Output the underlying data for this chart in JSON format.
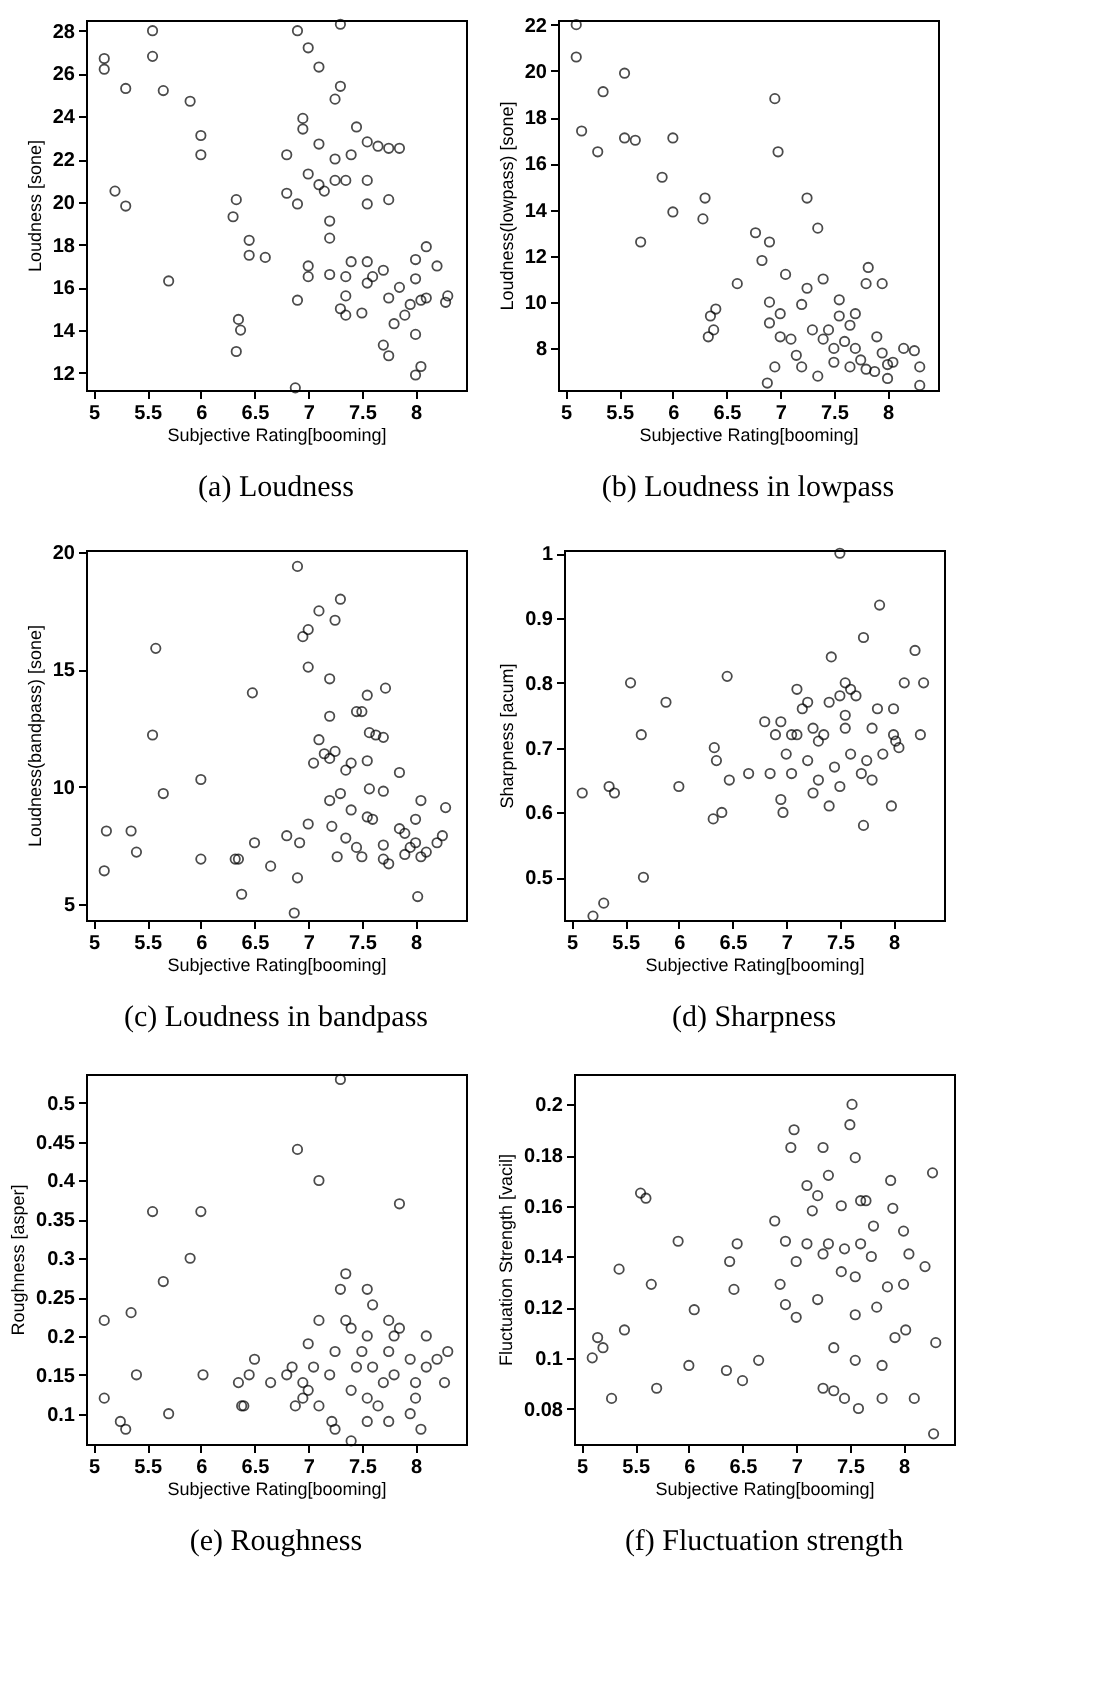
{
  "chart_data": [
    {
      "type": "scatter",
      "title": "(a) Loudness",
      "xlabel": "Subjective Rating[booming]",
      "ylabel": "Loudness [sone]",
      "marker": "circle",
      "color": "#000000",
      "xlim": [
        4.93,
        8.47
      ],
      "xticks": [
        5,
        5.5,
        6,
        6.5,
        7,
        7.5,
        8
      ],
      "ylim": [
        11.2,
        28.5
      ],
      "yticks": [
        12,
        14,
        16,
        18,
        20,
        22,
        24,
        26,
        28
      ],
      "x": [
        5.1,
        5.1,
        5.55,
        5.55,
        5.3,
        5.65,
        5.9,
        6.0,
        6.0,
        5.2,
        5.3,
        5.7,
        6.3,
        6.33,
        6.45,
        6.45,
        6.6,
        6.35,
        6.37,
        6.33,
        6.9,
        7.0,
        7.1,
        7.3,
        7.3,
        7.25,
        6.95,
        6.95,
        7.1,
        6.8,
        7.0,
        7.1,
        7.15,
        6.8,
        6.9,
        7.25,
        7.35,
        7.25,
        7.45,
        7.4,
        7.55,
        7.65,
        7.75,
        7.85,
        7.55,
        7.55,
        7.75,
        7.2,
        7.2,
        7.0,
        7.0,
        6.9,
        7.2,
        7.4,
        7.35,
        7.55,
        7.55,
        7.35,
        7.3,
        7.35,
        7.5,
        7.6,
        7.7,
        7.75,
        7.8,
        7.85,
        7.9,
        7.95,
        8.0,
        8.0,
        8.1,
        8.2,
        8.05,
        8.1,
        8.28,
        8.3,
        7.7,
        7.75,
        8.05,
        8.0,
        8.0,
        6.88
      ],
      "values": [
        26.7,
        26.2,
        28,
        26.8,
        25.3,
        25.2,
        24.7,
        23.1,
        22.2,
        20.5,
        19.8,
        16.3,
        19.3,
        20.1,
        18.2,
        17.5,
        17.4,
        14.5,
        14,
        13,
        28,
        27.2,
        26.3,
        28.3,
        25.4,
        24.8,
        23.9,
        23.4,
        22.7,
        22.2,
        21.3,
        20.8,
        20.5,
        20.4,
        19.9,
        22,
        21,
        21,
        23.5,
        22.2,
        22.8,
        22.6,
        22.5,
        22.5,
        21,
        19.9,
        20.1,
        19.1,
        18.3,
        17,
        16.5,
        15.4,
        16.6,
        17.2,
        16.5,
        17.2,
        16.2,
        15.6,
        15,
        14.7,
        14.8,
        16.5,
        16.8,
        15.5,
        14.3,
        16,
        14.7,
        15.2,
        16.4,
        17.3,
        17.9,
        17,
        15.4,
        15.5,
        15.3,
        15.6,
        13.3,
        12.8,
        12.3,
        11.9,
        13.8,
        11.3
      ]
    },
    {
      "type": "scatter",
      "title": "(b) Loudness in lowpass",
      "xlabel": "Subjective Rating[booming]",
      "ylabel": "Loudness(lowpass) [sone]",
      "marker": "circle",
      "color": "#000000",
      "xlim": [
        4.93,
        8.47
      ],
      "xticks": [
        5,
        5.5,
        6,
        6.5,
        7,
        7.5,
        8
      ],
      "ylim": [
        6.2,
        22.2
      ],
      "yticks": [
        8,
        10,
        12,
        14,
        16,
        18,
        20,
        22
      ],
      "x": [
        5.1,
        5.1,
        5.15,
        5.3,
        5.35,
        5.55,
        5.55,
        5.65,
        5.9,
        6.0,
        6.0,
        5.7,
        6.3,
        6.28,
        6.35,
        6.4,
        6.33,
        6.38,
        6.6,
        6.77,
        6.83,
        6.9,
        6.95,
        6.98,
        7.05,
        6.9,
        7.0,
        6.9,
        7.0,
        7.1,
        7.25,
        7.35,
        7.25,
        7.4,
        7.2,
        7.3,
        7.15,
        7.2,
        6.95,
        6.88,
        7.35,
        7.45,
        7.55,
        7.55,
        7.65,
        7.6,
        7.7,
        7.7,
        7.8,
        7.82,
        7.95,
        7.75,
        7.8,
        7.88,
        7.9,
        7.95,
        8.0,
        8.0,
        8.05,
        8.15,
        8.25,
        8.3,
        7.5,
        7.4,
        7.5,
        7.65,
        8.3
      ],
      "values": [
        22,
        20.6,
        17.4,
        16.5,
        19.1,
        19.9,
        17.1,
        17,
        15.4,
        17.1,
        13.9,
        12.6,
        14.5,
        13.6,
        9.4,
        9.7,
        8.5,
        8.8,
        10.8,
        13,
        11.8,
        12.6,
        18.8,
        16.5,
        11.2,
        10.0,
        9.5,
        9.1,
        8.5,
        8.4,
        14.5,
        13.2,
        10.6,
        11,
        9.9,
        8.8,
        7.7,
        7.2,
        7.2,
        6.5,
        6.8,
        8.8,
        10.1,
        9.4,
        9.0,
        8.3,
        8.0,
        9.5,
        10.8,
        11.5,
        10.8,
        7.5,
        7.1,
        7.0,
        8.5,
        7.8,
        7.3,
        6.7,
        7.4,
        8.0,
        7.9,
        7.2,
        7.4,
        8.4,
        8.0,
        7.2,
        6.4
      ]
    },
    {
      "type": "scatter",
      "title": "(c) Loudness in bandpass",
      "xlabel": "Subjective Rating[booming]",
      "ylabel": "Loudness(bandpass) [sone]",
      "marker": "circle",
      "color": "#000000",
      "xlim": [
        4.93,
        8.47
      ],
      "xticks": [
        5,
        5.5,
        6,
        6.5,
        7,
        7.5,
        8
      ],
      "ylim": [
        4.3,
        20.1
      ],
      "yticks": [
        5,
        10,
        15,
        20
      ],
      "x": [
        5.1,
        5.12,
        5.35,
        5.4,
        5.58,
        5.55,
        5.65,
        6.0,
        6.0,
        6.32,
        6.35,
        6.38,
        6.5,
        6.48,
        6.65,
        6.8,
        6.9,
        6.95,
        7.0,
        7.1,
        7.0,
        7.25,
        7.3,
        7.2,
        7.2,
        7.1,
        7.05,
        7.15,
        7.2,
        7.25,
        7.2,
        7.3,
        7.22,
        7.0,
        6.92,
        6.9,
        6.87,
        7.27,
        7.35,
        7.4,
        7.45,
        7.5,
        7.55,
        7.57,
        7.63,
        7.7,
        7.72,
        7.55,
        7.57,
        7.7,
        7.4,
        7.55,
        7.35,
        7.45,
        7.5,
        7.6,
        7.7,
        7.7,
        7.75,
        7.85,
        7.85,
        7.9,
        7.95,
        8.0,
        8.05,
        8.0,
        8.05,
        8.1,
        8.2,
        8.25,
        8.28,
        8.02,
        7.9
      ],
      "values": [
        6.4,
        8.1,
        8.1,
        7.2,
        15.9,
        12.2,
        9.7,
        10.3,
        6.9,
        6.9,
        6.9,
        5.4,
        7.6,
        14,
        6.6,
        7.9,
        19.4,
        16.4,
        16.7,
        17.5,
        15.1,
        17.1,
        18,
        14.6,
        13,
        12,
        11,
        11.4,
        11.2,
        11.5,
        9.4,
        9.7,
        8.3,
        8.4,
        7.6,
        6.1,
        4.6,
        7,
        10.7,
        11,
        13.2,
        13.2,
        13.9,
        12.3,
        12.2,
        12.1,
        14.2,
        11.1,
        9.9,
        9.8,
        9.0,
        8.7,
        7.8,
        7.4,
        7.0,
        8.6,
        7.5,
        6.9,
        6.7,
        8.2,
        10.6,
        8.0,
        7.4,
        8.6,
        9.4,
        7.6,
        7.0,
        7.2,
        7.6,
        7.9,
        9.1,
        5.3,
        7.1
      ]
    },
    {
      "type": "scatter",
      "title": "(d) Sharpness",
      "xlabel": "Subjective Rating[booming]",
      "ylabel": "Sharpness [acum]",
      "marker": "circle",
      "color": "#000000",
      "xlim": [
        4.93,
        8.47
      ],
      "xticks": [
        5,
        5.5,
        6,
        6.5,
        7,
        7.5,
        8
      ],
      "ylim": [
        0.434,
        1.005
      ],
      "yticks": [
        0.5,
        0.6,
        0.7,
        0.8,
        0.9,
        1
      ],
      "x": [
        5.1,
        5.2,
        5.3,
        5.35,
        5.4,
        5.55,
        5.65,
        5.67,
        5.88,
        6.0,
        6.33,
        6.35,
        6.32,
        6.4,
        6.45,
        6.47,
        6.65,
        6.8,
        6.85,
        6.9,
        6.95,
        6.95,
        6.97,
        7.0,
        7.05,
        7.05,
        7.1,
        7.1,
        7.15,
        7.2,
        7.2,
        7.25,
        7.25,
        7.3,
        7.3,
        7.35,
        7.4,
        7.4,
        7.42,
        7.45,
        7.5,
        7.5,
        7.55,
        7.55,
        7.55,
        7.5,
        7.6,
        7.65,
        7.72,
        7.72,
        7.75,
        7.8,
        7.8,
        7.85,
        7.87,
        7.9,
        7.98,
        8.0,
        8.0,
        8.02,
        8.05,
        8.1,
        8.2,
        8.25,
        8.28,
        7.7,
        7.6
      ],
      "values": [
        0.63,
        0.44,
        0.46,
        0.64,
        0.63,
        0.8,
        0.72,
        0.5,
        0.77,
        0.64,
        0.7,
        0.68,
        0.59,
        0.6,
        0.81,
        0.65,
        0.66,
        0.74,
        0.66,
        0.72,
        0.74,
        0.62,
        0.6,
        0.69,
        0.72,
        0.66,
        0.79,
        0.72,
        0.76,
        0.77,
        0.68,
        0.73,
        0.63,
        0.71,
        0.65,
        0.72,
        0.77,
        0.61,
        0.84,
        0.67,
        0.78,
        0.64,
        0.75,
        0.8,
        0.73,
        1.0,
        0.79,
        0.78,
        0.87,
        0.58,
        0.68,
        0.65,
        0.73,
        0.76,
        0.92,
        0.69,
        0.61,
        0.76,
        0.72,
        0.71,
        0.7,
        0.8,
        0.85,
        0.72,
        0.8,
        0.66,
        0.69
      ]
    },
    {
      "type": "scatter",
      "title": "(e) Roughness",
      "xlabel": "Subjective Rating[booming]",
      "ylabel": "Roughness [asper]",
      "marker": "circle",
      "color": "#000000",
      "xlim": [
        4.93,
        8.47
      ],
      "xticks": [
        5,
        5.5,
        6,
        6.5,
        7,
        7.5,
        8
      ],
      "ylim": [
        0.061,
        0.537
      ],
      "yticks": [
        0.1,
        0.15,
        0.2,
        0.25,
        0.3,
        0.35,
        0.4,
        0.45,
        0.5
      ],
      "x": [
        5.1,
        5.1,
        5.25,
        5.3,
        5.35,
        5.4,
        5.55,
        5.65,
        5.7,
        5.9,
        6.0,
        6.02,
        6.35,
        6.38,
        6.45,
        6.5,
        6.4,
        6.65,
        6.8,
        6.85,
        6.88,
        6.9,
        6.95,
        6.95,
        7.0,
        7.0,
        7.05,
        7.1,
        7.1,
        7.1,
        7.2,
        7.22,
        7.25,
        7.25,
        7.3,
        7.3,
        7.35,
        7.35,
        7.4,
        7.4,
        7.4,
        7.45,
        7.5,
        7.55,
        7.55,
        7.55,
        7.55,
        7.6,
        7.6,
        7.65,
        7.7,
        7.75,
        7.75,
        7.8,
        7.8,
        7.85,
        7.85,
        7.95,
        7.95,
        8.0,
        8.0,
        8.05,
        8.1,
        8.1,
        8.2,
        8.27,
        8.3,
        7.75
      ],
      "values": [
        0.22,
        0.12,
        0.09,
        0.08,
        0.23,
        0.15,
        0.36,
        0.27,
        0.1,
        0.3,
        0.36,
        0.15,
        0.14,
        0.11,
        0.15,
        0.17,
        0.11,
        0.14,
        0.15,
        0.16,
        0.11,
        0.44,
        0.14,
        0.12,
        0.19,
        0.13,
        0.16,
        0.4,
        0.22,
        0.11,
        0.15,
        0.09,
        0.18,
        0.08,
        0.26,
        0.53,
        0.28,
        0.22,
        0.21,
        0.13,
        0.065,
        0.16,
        0.18,
        0.26,
        0.2,
        0.12,
        0.09,
        0.24,
        0.16,
        0.11,
        0.14,
        0.22,
        0.18,
        0.2,
        0.15,
        0.37,
        0.21,
        0.1,
        0.17,
        0.12,
        0.14,
        0.08,
        0.2,
        0.16,
        0.17,
        0.14,
        0.18,
        0.09
      ]
    },
    {
      "type": "scatter",
      "title": "(f) Fluctuation strength",
      "xlabel": "Subjective Rating[booming]",
      "ylabel": "Fluctuation Strength [vacil]",
      "marker": "circle",
      "color": "#000000",
      "xlim": [
        4.93,
        8.47
      ],
      "xticks": [
        5,
        5.5,
        6,
        6.5,
        7,
        7.5,
        8
      ],
      "ylim": [
        0.066,
        0.212
      ],
      "yticks": [
        0.08,
        0.1,
        0.12,
        0.14,
        0.16,
        0.18,
        0.2
      ],
      "x": [
        5.1,
        5.15,
        5.2,
        5.28,
        5.35,
        5.4,
        5.55,
        5.6,
        5.65,
        5.7,
        5.9,
        6.0,
        6.05,
        6.35,
        6.38,
        6.42,
        6.45,
        6.5,
        6.65,
        6.8,
        6.85,
        6.9,
        6.9,
        6.95,
        6.98,
        7.0,
        7.0,
        7.1,
        7.1,
        7.15,
        7.2,
        7.2,
        7.25,
        7.25,
        7.25,
        7.3,
        7.3,
        7.35,
        7.35,
        7.42,
        7.42,
        7.45,
        7.45,
        7.5,
        7.52,
        7.55,
        7.55,
        7.55,
        7.55,
        7.58,
        7.6,
        7.6,
        7.65,
        7.7,
        7.72,
        7.75,
        7.8,
        7.8,
        7.85,
        7.88,
        7.9,
        7.92,
        8.0,
        8.0,
        8.02,
        8.05,
        8.1,
        8.2,
        8.27,
        8.3,
        8.28
      ],
      "values": [
        0.1,
        0.108,
        0.104,
        0.084,
        0.135,
        0.111,
        0.165,
        0.163,
        0.129,
        0.088,
        0.146,
        0.097,
        0.119,
        0.095,
        0.138,
        0.127,
        0.145,
        0.091,
        0.099,
        0.154,
        0.129,
        0.121,
        0.146,
        0.183,
        0.19,
        0.138,
        0.116,
        0.168,
        0.145,
        0.158,
        0.164,
        0.123,
        0.183,
        0.141,
        0.088,
        0.172,
        0.145,
        0.104,
        0.087,
        0.16,
        0.134,
        0.143,
        0.084,
        0.192,
        0.2,
        0.179,
        0.132,
        0.117,
        0.099,
        0.08,
        0.162,
        0.145,
        0.162,
        0.14,
        0.152,
        0.12,
        0.097,
        0.084,
        0.128,
        0.17,
        0.159,
        0.108,
        0.15,
        0.129,
        0.111,
        0.141,
        0.084,
        0.136,
        0.173,
        0.106,
        0.07
      ]
    }
  ]
}
